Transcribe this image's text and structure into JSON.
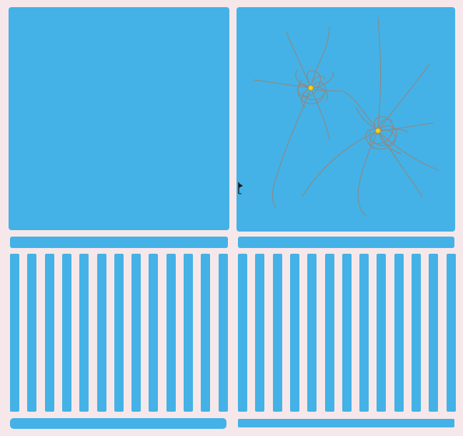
{
  "colors": {
    "background": "#f6e8ea",
    "panel": "#44b2e6",
    "network_line": "#8a8a8a",
    "node_fill": "#f5d020"
  },
  "icons": {
    "cursor": "flag-cursor-icon"
  },
  "stripes": {
    "left_count": 13,
    "right_count": 13
  }
}
